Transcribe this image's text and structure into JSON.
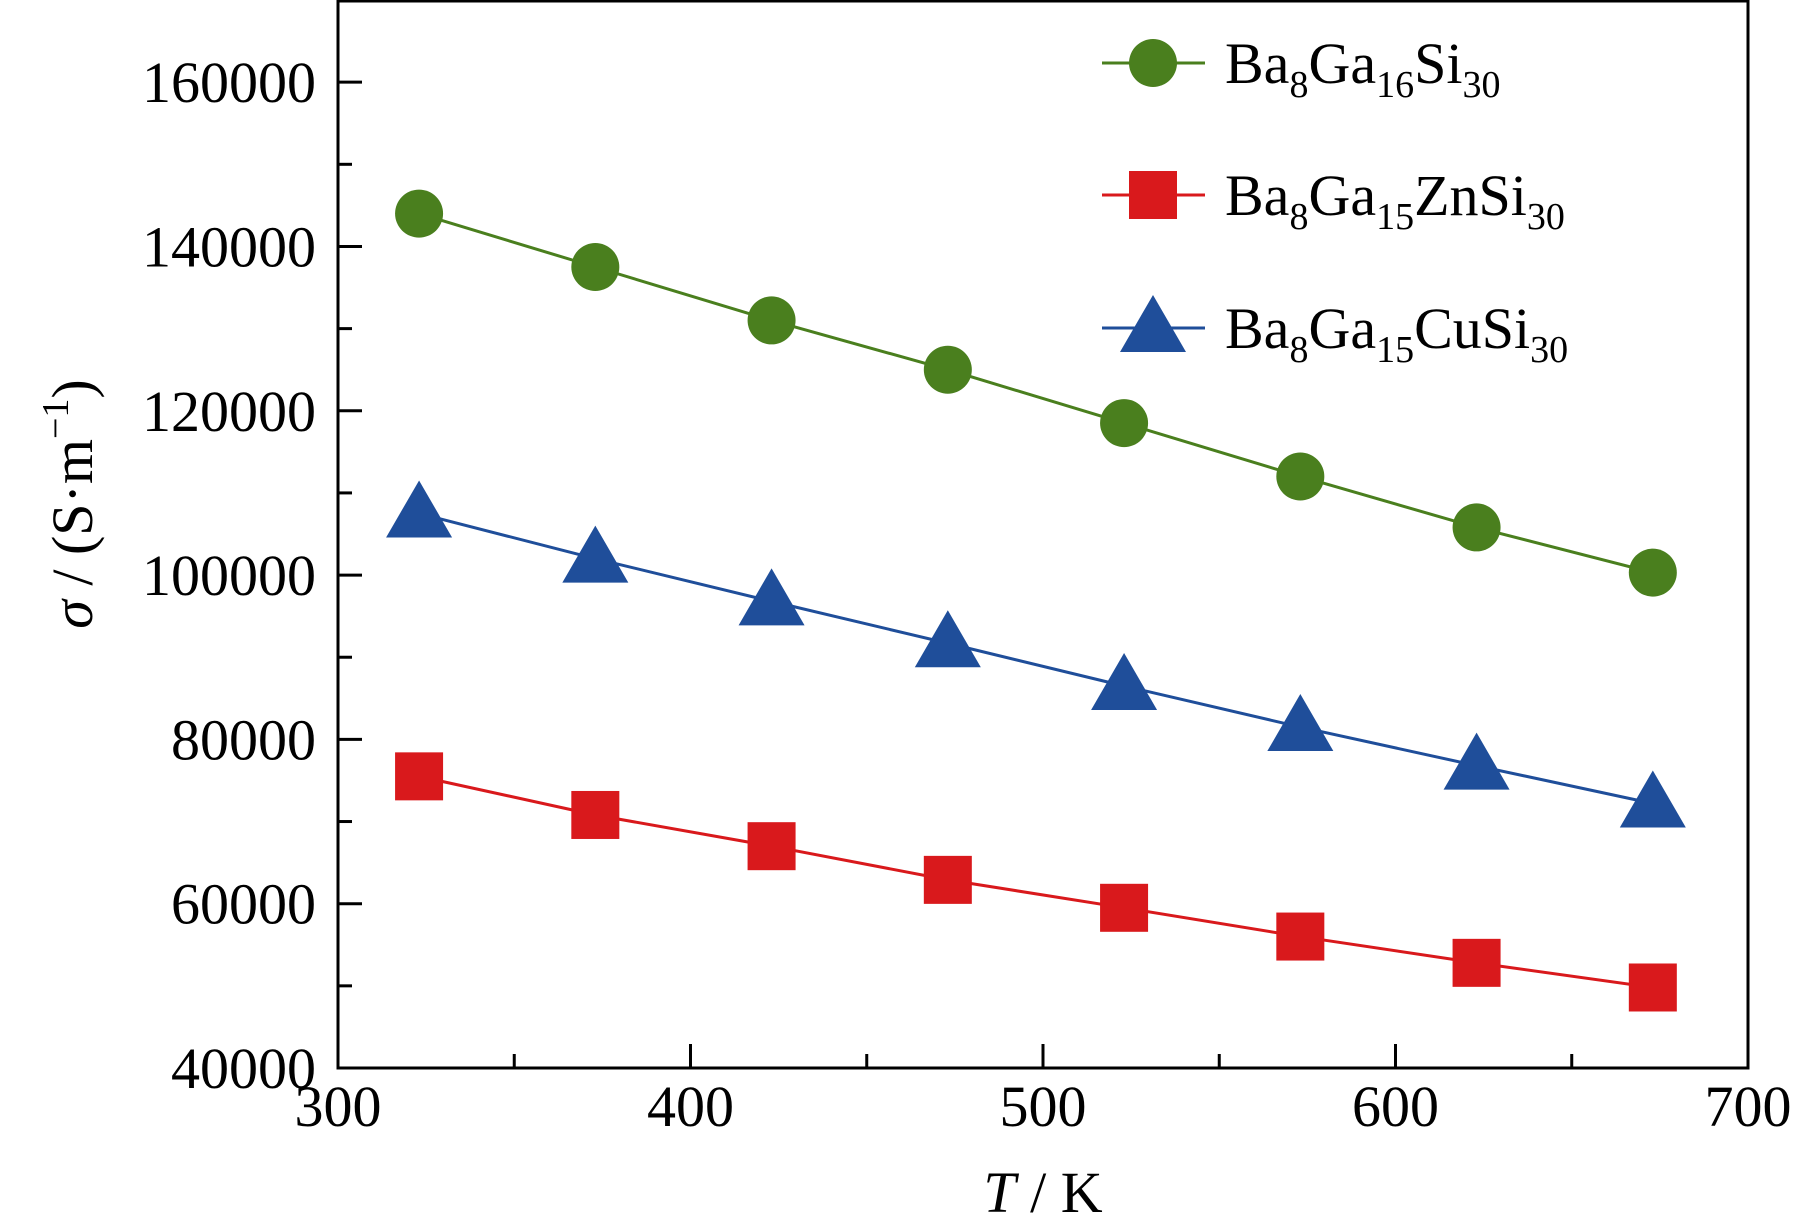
{
  "chart_data": {
    "type": "line",
    "xlabel": {
      "italic": "T",
      "rest": " / K"
    },
    "ylabel": {
      "italic": "σ",
      "rest": " / (S·m",
      "sup": "−1",
      "tail": ")"
    },
    "xlim": [
      300,
      700
    ],
    "ylim": [
      40000,
      170000
    ],
    "xticks": [
      300,
      400,
      500,
      600,
      700
    ],
    "yticks": [
      40000,
      60000,
      80000,
      100000,
      120000,
      140000,
      160000
    ],
    "grid": false,
    "legend_position": "top-right",
    "x": [
      323,
      373,
      423,
      473,
      523,
      573,
      623,
      673
    ],
    "series": [
      {
        "name": "Ba8Ga16Si30",
        "name_parts": [
          [
            "Ba",
            ""
          ],
          [
            "8",
            "sub"
          ],
          [
            "Ga",
            ""
          ],
          [
            "16",
            "sub"
          ],
          [
            "Si",
            ""
          ],
          [
            "30",
            "sub"
          ]
        ],
        "marker": "circle",
        "color": "#4a7f1e",
        "values": [
          144000,
          137500,
          131000,
          125000,
          118500,
          112000,
          105800,
          100300
        ]
      },
      {
        "name": "Ba8Ga15ZnSi30",
        "name_parts": [
          [
            "Ba",
            ""
          ],
          [
            "8",
            "sub"
          ],
          [
            "Ga",
            ""
          ],
          [
            "15",
            "sub"
          ],
          [
            "ZnSi",
            ""
          ],
          [
            "30",
            "sub"
          ]
        ],
        "marker": "square",
        "color": "#d9191c",
        "values": [
          75500,
          70800,
          67000,
          62900,
          59500,
          56000,
          52800,
          49800
        ]
      },
      {
        "name": "Ba8Ga15CuSi30",
        "name_parts": [
          [
            "Ba",
            ""
          ],
          [
            "8",
            "sub"
          ],
          [
            "Ga",
            ""
          ],
          [
            "15",
            "sub"
          ],
          [
            "CuSi",
            ""
          ],
          [
            "30",
            "sub"
          ]
        ],
        "marker": "triangle",
        "color": "#1f4e9a",
        "values": [
          107500,
          102000,
          96800,
          91700,
          86500,
          81500,
          76800,
          72200
        ]
      }
    ]
  }
}
